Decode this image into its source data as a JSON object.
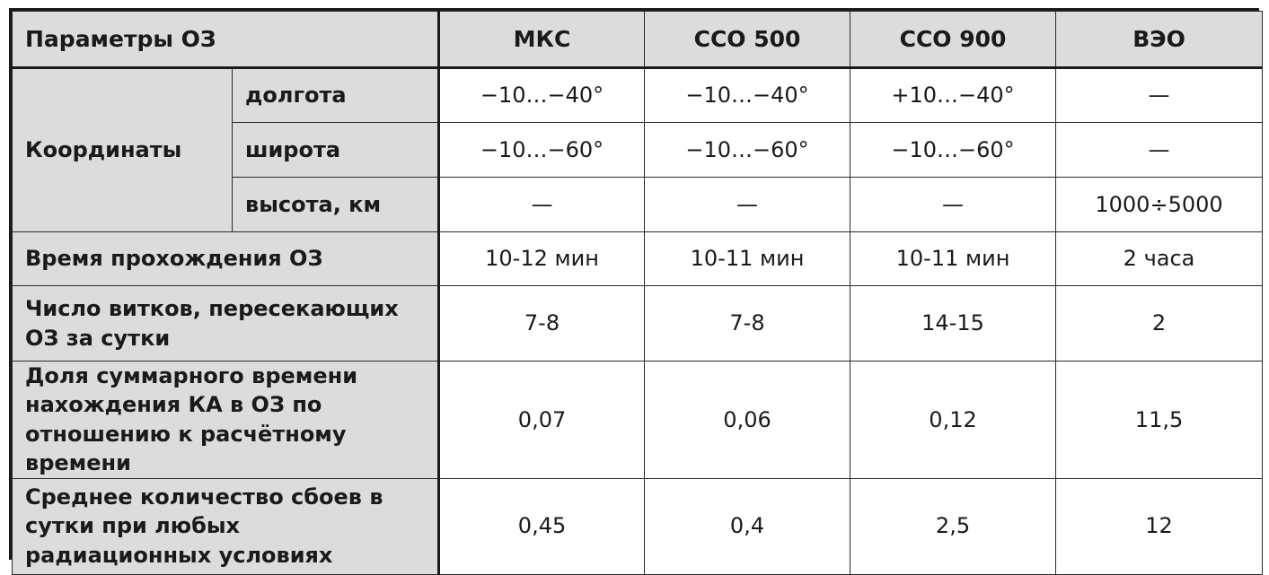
{
  "header": {
    "param_label": "Параметры ОЗ",
    "columns": [
      "МКС",
      "ССО 500",
      "ССО 900",
      "ВЭО"
    ]
  },
  "coordinates": {
    "label": "Координаты",
    "rows": [
      {
        "sub": "долгота",
        "values": [
          "−10…−40°",
          "−10…−40°",
          "+10…−40°",
          "—"
        ]
      },
      {
        "sub": "широта",
        "values": [
          "−10…−60°",
          "−10…−60°",
          "−10…−60°",
          "—"
        ]
      },
      {
        "sub": "высота, км",
        "values": [
          "—",
          "—",
          "—",
          "1000÷5000"
        ]
      }
    ]
  },
  "rows": [
    {
      "label": "Время прохождения ОЗ",
      "values": [
        "10-12 мин",
        "10-11 мин",
        "10-11 мин",
        "2 часа"
      ]
    },
    {
      "label": "Число витков, пересекающих ОЗ за сутки",
      "values": [
        "7-8",
        "7-8",
        "14-15",
        "2"
      ]
    },
    {
      "label": "Доля суммарного времени нахождения КА в ОЗ по отношению к расчётному времени",
      "values": [
        "0,07",
        "0,06",
        "0,12",
        "11,5"
      ]
    },
    {
      "label": "Среднее количество сбоев в сутки при любых радиационных условиях",
      "values": [
        "0,45",
        "0,4",
        "2,5",
        "12"
      ]
    }
  ]
}
